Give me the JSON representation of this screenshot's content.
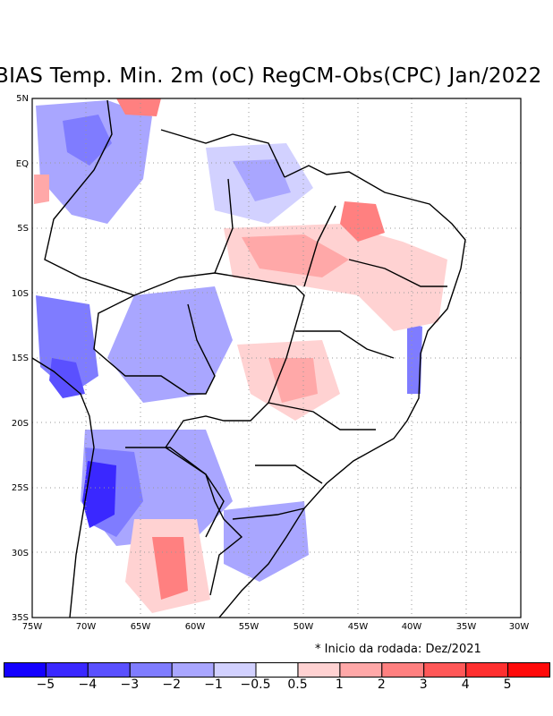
{
  "title": "BIAS Temp. Min. 2m (oC) RegCM-Obs(CPC) Jan/2022",
  "note": "* Inicio da rodada: Dez/2021",
  "axes": {
    "lat_labels": [
      "5N",
      "EQ",
      "5S",
      "10S",
      "15S",
      "20S",
      "25S",
      "30S",
      "35S"
    ],
    "lon_labels": [
      "75W",
      "70W",
      "65W",
      "60W",
      "55W",
      "50W",
      "45W",
      "40W",
      "35W",
      "30W"
    ]
  },
  "colorbar": {
    "colors": [
      "#1400ff",
      "#3a28ff",
      "#5a50ff",
      "#7f7cff",
      "#a9a6ff",
      "#d2d1ff",
      "#ffffff",
      "#ffd2d2",
      "#ffa8a8",
      "#ff8080",
      "#ff5858",
      "#ff3030",
      "#ff0a0a"
    ],
    "labels": [
      "−5",
      "−4",
      "−3",
      "−2",
      "−1",
      "−0.5",
      "0.5",
      "1",
      "2",
      "3",
      "4",
      "5"
    ]
  }
}
